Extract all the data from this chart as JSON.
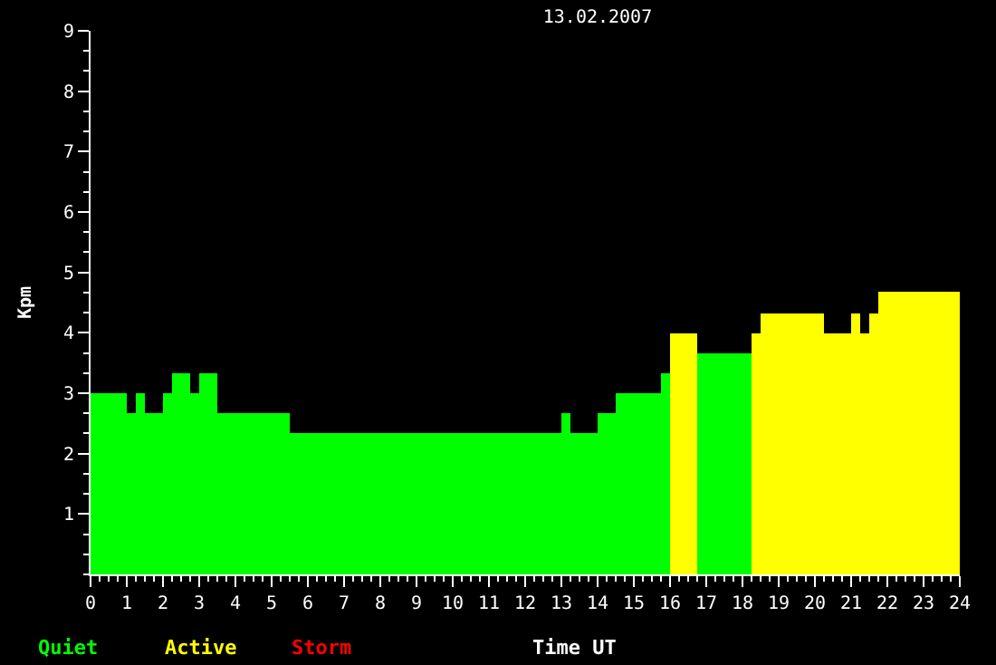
{
  "chart_data": {
    "type": "bar",
    "title": "13.02.2007",
    "xlabel": "Time UT",
    "ylabel": "Kpm",
    "x": [
      0.5,
      1.125,
      1.375,
      1.75,
      2.125,
      2.5,
      2.875,
      3.25,
      4.5,
      9.25,
      13.125,
      13.625,
      14.25,
      15.125,
      15.875,
      16.375,
      17.5,
      18.375,
      19.375,
      20.625,
      21.125,
      21.375,
      21.625,
      22.875
    ],
    "series": [
      {
        "name": "Quiet",
        "color": "#00ff00",
        "values": [
          3,
          2.67,
          3,
          2.67,
          3,
          3.33,
          3,
          3.33,
          2.67,
          2.33,
          2.67,
          2.33,
          2.67,
          3,
          3.33,
          null,
          3.67,
          null,
          null,
          null,
          null,
          null,
          null,
          null
        ]
      },
      {
        "name": "Active",
        "color": "#ffff00",
        "values": [
          null,
          null,
          null,
          null,
          null,
          null,
          null,
          null,
          null,
          null,
          null,
          null,
          null,
          null,
          null,
          4,
          null,
          4,
          4.33,
          4,
          4.33,
          4,
          4.33,
          4.67
        ]
      },
      {
        "name": "Storm",
        "color": "#ff0000",
        "values": [
          null,
          null,
          null,
          null,
          null,
          null,
          null,
          null,
          null,
          null,
          null,
          null,
          null,
          null,
          null,
          null,
          null,
          null,
          null,
          null,
          null,
          null,
          null,
          null
        ]
      }
    ],
    "xlim": [
      0,
      24
    ],
    "xticks": [
      0,
      1,
      2,
      3,
      4,
      5,
      6,
      7,
      8,
      9,
      10,
      11,
      12,
      13,
      14,
      15,
      16,
      17,
      18,
      19,
      20,
      21,
      22,
      23,
      24
    ],
    "ylim": [
      0,
      9
    ],
    "yticks": [
      1,
      2,
      3,
      4,
      5,
      6,
      7,
      8,
      9
    ],
    "grid": false,
    "legend": "bottom left"
  }
}
